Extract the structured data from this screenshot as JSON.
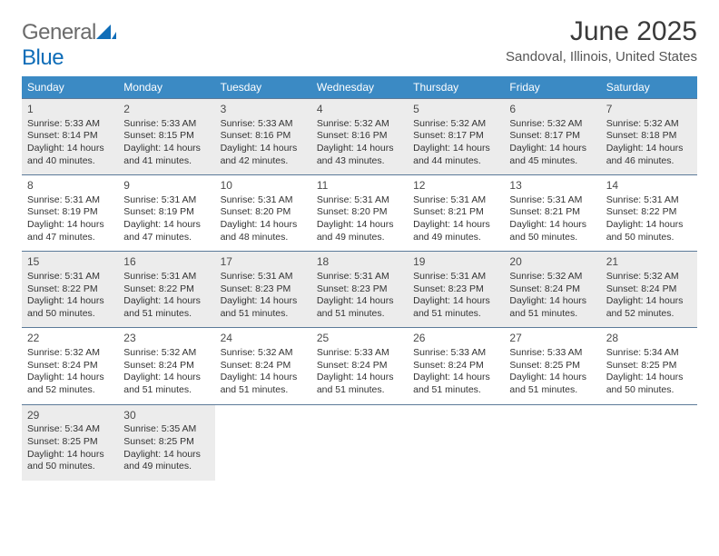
{
  "brand": {
    "name_part1": "General",
    "name_part2": "Blue",
    "text_color": "#6b6b6b",
    "accent_color": "#0f6db8"
  },
  "title": "June 2025",
  "location": "Sandoval, Illinois, United States",
  "colors": {
    "header_bg": "#3b8ac4",
    "header_text": "#ffffff",
    "row_alt_bg": "#ececec",
    "row_bg": "#ffffff",
    "border": "#5c7a99",
    "body_text": "#333333"
  },
  "day_headers": [
    "Sunday",
    "Monday",
    "Tuesday",
    "Wednesday",
    "Thursday",
    "Friday",
    "Saturday"
  ],
  "weeks": [
    {
      "alt": true,
      "days": [
        {
          "n": "1",
          "sr": "Sunrise: 5:33 AM",
          "ss": "Sunset: 8:14 PM",
          "d1": "Daylight: 14 hours",
          "d2": "and 40 minutes."
        },
        {
          "n": "2",
          "sr": "Sunrise: 5:33 AM",
          "ss": "Sunset: 8:15 PM",
          "d1": "Daylight: 14 hours",
          "d2": "and 41 minutes."
        },
        {
          "n": "3",
          "sr": "Sunrise: 5:33 AM",
          "ss": "Sunset: 8:16 PM",
          "d1": "Daylight: 14 hours",
          "d2": "and 42 minutes."
        },
        {
          "n": "4",
          "sr": "Sunrise: 5:32 AM",
          "ss": "Sunset: 8:16 PM",
          "d1": "Daylight: 14 hours",
          "d2": "and 43 minutes."
        },
        {
          "n": "5",
          "sr": "Sunrise: 5:32 AM",
          "ss": "Sunset: 8:17 PM",
          "d1": "Daylight: 14 hours",
          "d2": "and 44 minutes."
        },
        {
          "n": "6",
          "sr": "Sunrise: 5:32 AM",
          "ss": "Sunset: 8:17 PM",
          "d1": "Daylight: 14 hours",
          "d2": "and 45 minutes."
        },
        {
          "n": "7",
          "sr": "Sunrise: 5:32 AM",
          "ss": "Sunset: 8:18 PM",
          "d1": "Daylight: 14 hours",
          "d2": "and 46 minutes."
        }
      ]
    },
    {
      "alt": false,
      "days": [
        {
          "n": "8",
          "sr": "Sunrise: 5:31 AM",
          "ss": "Sunset: 8:19 PM",
          "d1": "Daylight: 14 hours",
          "d2": "and 47 minutes."
        },
        {
          "n": "9",
          "sr": "Sunrise: 5:31 AM",
          "ss": "Sunset: 8:19 PM",
          "d1": "Daylight: 14 hours",
          "d2": "and 47 minutes."
        },
        {
          "n": "10",
          "sr": "Sunrise: 5:31 AM",
          "ss": "Sunset: 8:20 PM",
          "d1": "Daylight: 14 hours",
          "d2": "and 48 minutes."
        },
        {
          "n": "11",
          "sr": "Sunrise: 5:31 AM",
          "ss": "Sunset: 8:20 PM",
          "d1": "Daylight: 14 hours",
          "d2": "and 49 minutes."
        },
        {
          "n": "12",
          "sr": "Sunrise: 5:31 AM",
          "ss": "Sunset: 8:21 PM",
          "d1": "Daylight: 14 hours",
          "d2": "and 49 minutes."
        },
        {
          "n": "13",
          "sr": "Sunrise: 5:31 AM",
          "ss": "Sunset: 8:21 PM",
          "d1": "Daylight: 14 hours",
          "d2": "and 50 minutes."
        },
        {
          "n": "14",
          "sr": "Sunrise: 5:31 AM",
          "ss": "Sunset: 8:22 PM",
          "d1": "Daylight: 14 hours",
          "d2": "and 50 minutes."
        }
      ]
    },
    {
      "alt": true,
      "days": [
        {
          "n": "15",
          "sr": "Sunrise: 5:31 AM",
          "ss": "Sunset: 8:22 PM",
          "d1": "Daylight: 14 hours",
          "d2": "and 50 minutes."
        },
        {
          "n": "16",
          "sr": "Sunrise: 5:31 AM",
          "ss": "Sunset: 8:22 PM",
          "d1": "Daylight: 14 hours",
          "d2": "and 51 minutes."
        },
        {
          "n": "17",
          "sr": "Sunrise: 5:31 AM",
          "ss": "Sunset: 8:23 PM",
          "d1": "Daylight: 14 hours",
          "d2": "and 51 minutes."
        },
        {
          "n": "18",
          "sr": "Sunrise: 5:31 AM",
          "ss": "Sunset: 8:23 PM",
          "d1": "Daylight: 14 hours",
          "d2": "and 51 minutes."
        },
        {
          "n": "19",
          "sr": "Sunrise: 5:31 AM",
          "ss": "Sunset: 8:23 PM",
          "d1": "Daylight: 14 hours",
          "d2": "and 51 minutes."
        },
        {
          "n": "20",
          "sr": "Sunrise: 5:32 AM",
          "ss": "Sunset: 8:24 PM",
          "d1": "Daylight: 14 hours",
          "d2": "and 51 minutes."
        },
        {
          "n": "21",
          "sr": "Sunrise: 5:32 AM",
          "ss": "Sunset: 8:24 PM",
          "d1": "Daylight: 14 hours",
          "d2": "and 52 minutes."
        }
      ]
    },
    {
      "alt": false,
      "days": [
        {
          "n": "22",
          "sr": "Sunrise: 5:32 AM",
          "ss": "Sunset: 8:24 PM",
          "d1": "Daylight: 14 hours",
          "d2": "and 52 minutes."
        },
        {
          "n": "23",
          "sr": "Sunrise: 5:32 AM",
          "ss": "Sunset: 8:24 PM",
          "d1": "Daylight: 14 hours",
          "d2": "and 51 minutes."
        },
        {
          "n": "24",
          "sr": "Sunrise: 5:32 AM",
          "ss": "Sunset: 8:24 PM",
          "d1": "Daylight: 14 hours",
          "d2": "and 51 minutes."
        },
        {
          "n": "25",
          "sr": "Sunrise: 5:33 AM",
          "ss": "Sunset: 8:24 PM",
          "d1": "Daylight: 14 hours",
          "d2": "and 51 minutes."
        },
        {
          "n": "26",
          "sr": "Sunrise: 5:33 AM",
          "ss": "Sunset: 8:24 PM",
          "d1": "Daylight: 14 hours",
          "d2": "and 51 minutes."
        },
        {
          "n": "27",
          "sr": "Sunrise: 5:33 AM",
          "ss": "Sunset: 8:25 PM",
          "d1": "Daylight: 14 hours",
          "d2": "and 51 minutes."
        },
        {
          "n": "28",
          "sr": "Sunrise: 5:34 AM",
          "ss": "Sunset: 8:25 PM",
          "d1": "Daylight: 14 hours",
          "d2": "and 50 minutes."
        }
      ]
    },
    {
      "alt": true,
      "days": [
        {
          "n": "29",
          "sr": "Sunrise: 5:34 AM",
          "ss": "Sunset: 8:25 PM",
          "d1": "Daylight: 14 hours",
          "d2": "and 50 minutes."
        },
        {
          "n": "30",
          "sr": "Sunrise: 5:35 AM",
          "ss": "Sunset: 8:25 PM",
          "d1": "Daylight: 14 hours",
          "d2": "and 49 minutes."
        },
        null,
        null,
        null,
        null,
        null
      ]
    }
  ]
}
